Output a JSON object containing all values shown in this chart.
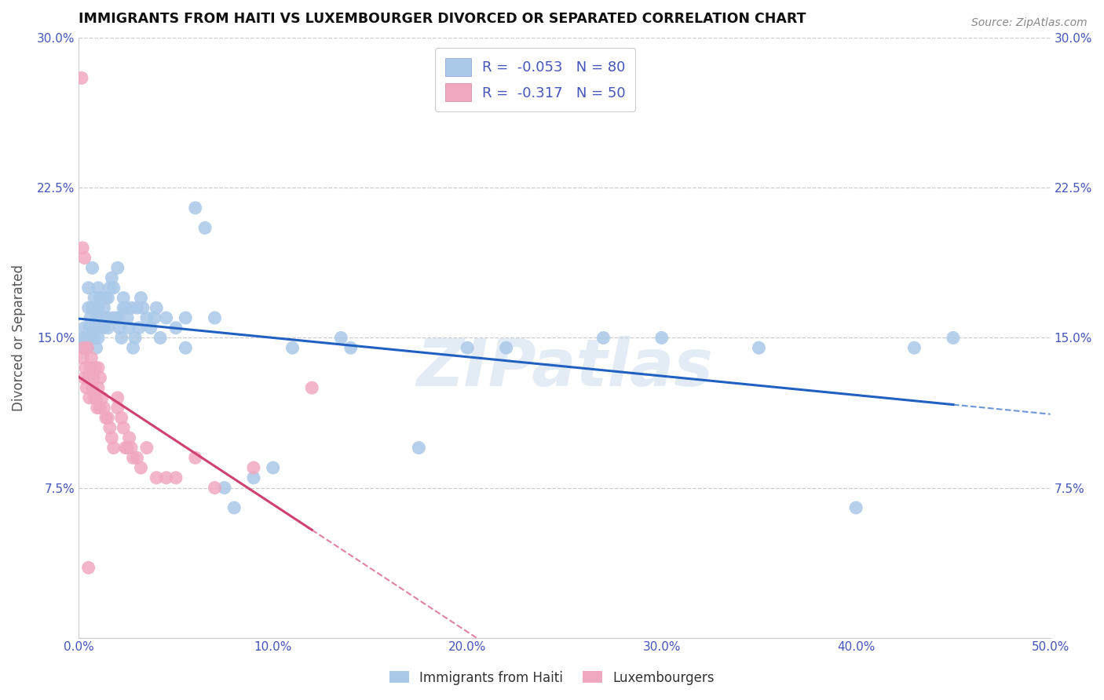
{
  "title": "IMMIGRANTS FROM HAITI VS LUXEMBOURGER DIVORCED OR SEPARATED CORRELATION CHART",
  "source": "Source: ZipAtlas.com",
  "ylabel": "Divorced or Separated",
  "series": [
    {
      "label": "Immigrants from Haiti",
      "R": -0.053,
      "N": 80,
      "dot_color": "#aac8e8",
      "line_color": "#2060c0",
      "x": [
        0.3,
        0.4,
        0.5,
        0.5,
        0.6,
        0.6,
        0.7,
        0.7,
        0.8,
        0.8,
        0.9,
        0.9,
        1.0,
        1.0,
        1.0,
        1.1,
        1.1,
        1.2,
        1.2,
        1.3,
        1.3,
        1.4,
        1.4,
        1.5,
        1.5,
        1.6,
        1.7,
        1.7,
        1.8,
        1.9,
        2.0,
        2.0,
        2.1,
        2.2,
        2.3,
        2.3,
        2.4,
        2.5,
        2.6,
        2.7,
        2.8,
        2.9,
        3.0,
        3.1,
        3.2,
        3.3,
        3.5,
        3.7,
        3.9,
        4.0,
        4.2,
        4.5,
        5.0,
        5.5,
        5.5,
        6.0,
        6.5,
        7.0,
        7.5,
        8.0,
        9.0,
        10.0,
        11.0,
        13.5,
        14.0,
        17.5,
        20.0,
        22.0,
        27.0,
        30.0,
        35.0,
        40.0,
        43.0,
        45.0,
        0.2,
        0.25,
        0.35,
        0.45,
        0.55,
        0.65
      ],
      "y": [
        15.5,
        14.5,
        16.5,
        17.5,
        15.0,
        16.0,
        16.5,
        18.5,
        15.0,
        17.0,
        14.5,
        16.0,
        15.0,
        16.5,
        17.5,
        15.5,
        17.0,
        16.0,
        17.0,
        15.5,
        16.5,
        16.0,
        17.0,
        15.5,
        17.0,
        17.5,
        16.0,
        18.0,
        17.5,
        16.0,
        16.0,
        18.5,
        15.5,
        15.0,
        17.0,
        16.5,
        16.5,
        16.0,
        15.5,
        16.5,
        14.5,
        15.0,
        16.5,
        15.5,
        17.0,
        16.5,
        16.0,
        15.5,
        16.0,
        16.5,
        15.0,
        16.0,
        15.5,
        16.0,
        14.5,
        21.5,
        20.5,
        16.0,
        7.5,
        6.5,
        8.0,
        8.5,
        14.5,
        15.0,
        14.5,
        9.5,
        14.5,
        14.5,
        15.0,
        15.0,
        14.5,
        6.5,
        14.5,
        15.0,
        14.5,
        15.0,
        15.0,
        14.5,
        15.5,
        15.5
      ]
    },
    {
      "label": "Luxembourgers",
      "R": -0.317,
      "N": 50,
      "dot_color": "#f0a8c0",
      "line_color": "#d04070",
      "x": [
        0.2,
        0.25,
        0.3,
        0.35,
        0.4,
        0.45,
        0.5,
        0.55,
        0.6,
        0.65,
        0.7,
        0.75,
        0.8,
        0.85,
        0.9,
        0.95,
        1.0,
        1.0,
        1.1,
        1.1,
        1.2,
        1.3,
        1.4,
        1.5,
        1.6,
        1.7,
        1.8,
        2.0,
        2.0,
        2.2,
        2.3,
        2.4,
        2.5,
        2.6,
        2.7,
        2.8,
        3.0,
        3.2,
        3.5,
        4.0,
        4.5,
        5.0,
        6.0,
        7.0,
        9.0,
        12.0,
        0.15,
        0.2,
        0.3,
        0.5
      ],
      "y": [
        14.0,
        14.5,
        13.0,
        13.5,
        12.5,
        14.5,
        13.0,
        12.0,
        13.5,
        14.0,
        12.5,
        13.0,
        12.0,
        13.5,
        12.0,
        11.5,
        12.5,
        13.5,
        11.5,
        13.0,
        12.0,
        11.5,
        11.0,
        11.0,
        10.5,
        10.0,
        9.5,
        11.5,
        12.0,
        11.0,
        10.5,
        9.5,
        9.5,
        10.0,
        9.5,
        9.0,
        9.0,
        8.5,
        9.5,
        8.0,
        8.0,
        8.0,
        9.0,
        7.5,
        8.5,
        12.5,
        28.0,
        19.5,
        19.0,
        3.5
      ]
    }
  ],
  "xlim": [
    0,
    50
  ],
  "ylim": [
    0,
    30
  ],
  "xticks": [
    0,
    10,
    20,
    30,
    40,
    50
  ],
  "xtick_labels": [
    "0.0%",
    "10.0%",
    "20.0%",
    "30.0%",
    "40.0%",
    "50.0%"
  ],
  "yticks": [
    0,
    7.5,
    15.0,
    22.5,
    30.0
  ],
  "ytick_labels": [
    "",
    "7.5%",
    "15.0%",
    "22.5%",
    "30.0%"
  ],
  "right_ytick_labels": [
    "",
    "7.5%",
    "15.0%",
    "22.5%",
    "30.0%"
  ],
  "watermark": "ZIPatlas",
  "background_color": "#ffffff",
  "grid_color": "#cccccc",
  "axis_color": "#4455bb",
  "title_color": "#111111"
}
